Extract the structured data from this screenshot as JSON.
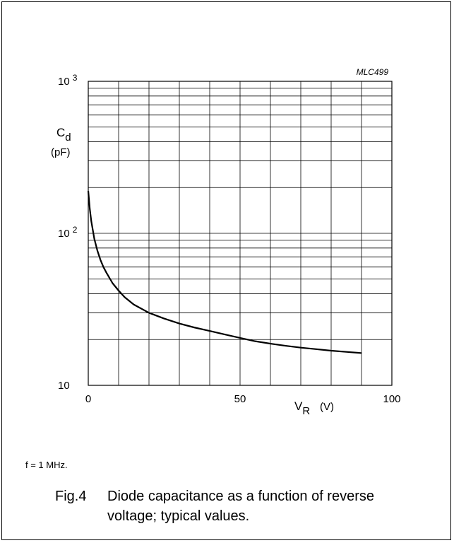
{
  "chart_data": {
    "type": "line",
    "code": "MLC499",
    "title": "",
    "xlabel": "V",
    "xlabel_sub": "R",
    "xlabel_unit": "(V)",
    "ylabel": "C",
    "ylabel_sub": "d",
    "ylabel_unit": "(pF)",
    "xlim": [
      0,
      100
    ],
    "ylim": [
      10,
      1000
    ],
    "yscale": "log",
    "grid": true,
    "x_ticks": [
      "0",
      "50",
      "100"
    ],
    "y_ticks": [
      {
        "base": "10",
        "exp": ""
      },
      {
        "base": "10",
        "exp": "2"
      },
      {
        "base": "10",
        "exp": "3"
      }
    ],
    "series": [
      {
        "x": [
          0,
          0.5,
          1,
          2,
          3,
          4,
          5,
          6,
          8,
          10,
          12,
          15,
          20,
          25,
          30,
          35,
          40,
          45,
          50,
          55,
          60,
          65,
          70,
          75,
          80,
          85,
          90
        ],
        "values": [
          190,
          145,
          120,
          92,
          77,
          67,
          60,
          55,
          47,
          42,
          38,
          34,
          30,
          27.5,
          25.5,
          24,
          22.8,
          21.6,
          20.5,
          19.5,
          18.8,
          18.2,
          17.7,
          17.3,
          16.9,
          16.6,
          16.3
        ]
      }
    ]
  },
  "footnote": "f = 1 MHz.",
  "caption": {
    "number": "Fig.4",
    "text": "Diode capacitance as a function of reverse voltage; typical values."
  }
}
